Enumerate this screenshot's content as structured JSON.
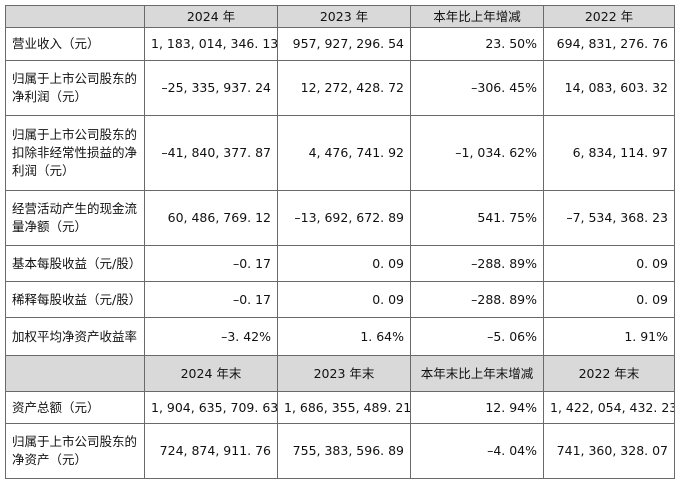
{
  "header1": {
    "c1": "2024 年",
    "c2": "2023 年",
    "c3": "本年比上年增减",
    "c4": "2022 年"
  },
  "rows1": [
    {
      "label": "营业收入（元）",
      "v1": "1, 183, 014, 346. 13",
      "v2": "957, 927, 296. 54",
      "v3": "23. 50%",
      "v4": "694, 831, 276. 76"
    },
    {
      "label": "归属于上市公司股东的净利润（元）",
      "v1": "–25, 335, 937. 24",
      "v2": "12, 272, 428. 72",
      "v3": "–306. 45%",
      "v4": "14, 083, 603. 32"
    },
    {
      "label": "归属于上市公司股东的扣除非经常性损益的净利润（元）",
      "v1": "–41, 840, 377. 87",
      "v2": "4, 476, 741. 92",
      "v3": "–1, 034. 62%",
      "v4": "6, 834, 114. 97"
    },
    {
      "label": "经营活动产生的现金流量净额（元）",
      "v1": "60, 486, 769. 12",
      "v2": "–13, 692, 672. 89",
      "v3": "541. 75%",
      "v4": "–7, 534, 368. 23"
    },
    {
      "label": "基本每股收益（元/股）",
      "v1": "–0. 17",
      "v2": "0. 09",
      "v3": "–288. 89%",
      "v4": "0. 09"
    },
    {
      "label": "稀释每股收益（元/股）",
      "v1": "–0. 17",
      "v2": "0. 09",
      "v3": "–288. 89%",
      "v4": "0. 09"
    },
    {
      "label": "加权平均净资产收益率",
      "v1": "–3. 42%",
      "v2": "1. 64%",
      "v3": "–5. 06%",
      "v4": "1. 91%"
    }
  ],
  "header2": {
    "c1": "2024 年末",
    "c2": "2023 年末",
    "c3": "本年末比上年末增减",
    "c4": "2022 年末"
  },
  "rows2": [
    {
      "label": "资产总额（元）",
      "v1": "1, 904, 635, 709. 63",
      "v2": "1, 686, 355, 489. 21",
      "v3": "12. 94%",
      "v4": "1, 422, 054, 432. 23"
    },
    {
      "label": "归属于上市公司股东的净资产（元）",
      "v1": "724, 874, 911. 76",
      "v2": "755, 383, 596. 89",
      "v3": "–4. 04%",
      "v4": "741, 360, 328. 07"
    }
  ]
}
